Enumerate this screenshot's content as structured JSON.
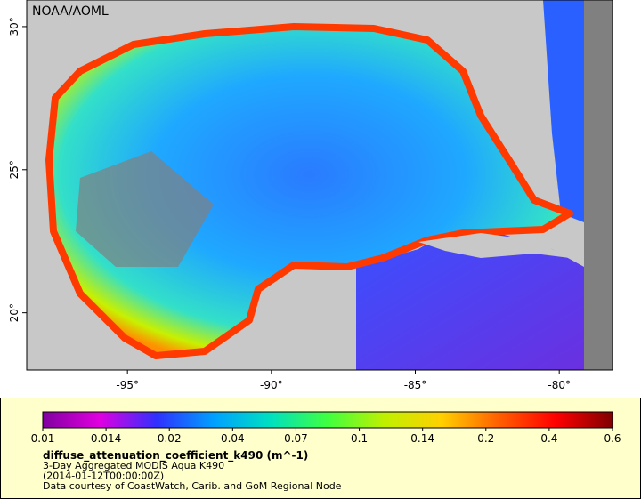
{
  "map": {
    "title": "NOAA/AOML",
    "xlim": [
      -98.5,
      -78.15
    ],
    "ylim": [
      18,
      30.93
    ],
    "xticks": [
      {
        "value": -95,
        "label": "-95°"
      },
      {
        "value": -90,
        "label": "-90°"
      },
      {
        "value": -85,
        "label": "-85°"
      },
      {
        "value": -80,
        "label": "-80°"
      }
    ],
    "yticks": [
      {
        "value": 20,
        "label": "20°"
      },
      {
        "value": 25,
        "label": "25°"
      },
      {
        "value": 30,
        "label": "30°"
      }
    ],
    "colorbar": {
      "labels": [
        "0.01",
        "0.014",
        "0.02",
        "0.04",
        "0.07",
        "0.1",
        "0.14",
        "0.2",
        "0.4",
        "0.6"
      ],
      "colors": [
        "#8000a0",
        "#e000e0",
        "#3030ff",
        "#00a0ff",
        "#00e0c0",
        "#40ff40",
        "#c0f000",
        "#ffd000",
        "#ff6000",
        "#ff0000",
        "#800000"
      ]
    },
    "variable": "diffuse_attenuation_coefficient_k490 (m^-1)",
    "lines": [
      "3-Day Aggregated MODIS Aqua K490",
      "(2014-01-12T00:00:00Z)",
      "Data courtesy of CoastWatch, Carib. and GoM Regional Node"
    ]
  }
}
